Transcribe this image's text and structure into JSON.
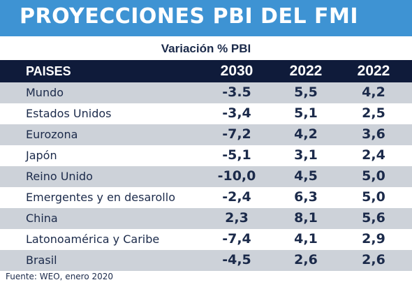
{
  "title": "PROYECCIONES PBI DEL FMI",
  "subtitle": "Variación % PBI",
  "source": "Fuente: WEO, enero 2020",
  "colors": {
    "title_bg": "#3e93d3",
    "header_bg": "#0f1b3a",
    "row_shade": "#cdd2d9",
    "text_dark": "#1b2a4a"
  },
  "chart_data": {
    "type": "table",
    "columns": [
      "PAISES",
      "2030",
      "2022",
      "2022"
    ],
    "rows": [
      {
        "label": "Mundo",
        "values": [
          "-3.5",
          "5,5",
          "4,2"
        ]
      },
      {
        "label": "Estados Unidos",
        "values": [
          "-3,4",
          "5,1",
          "2,5"
        ]
      },
      {
        "label": "Eurozona",
        "values": [
          "-7,2",
          "4,2",
          "3,6"
        ]
      },
      {
        "label": "Japón",
        "values": [
          "-5,1",
          "3,1",
          "2,4"
        ]
      },
      {
        "label": "Reino Unido",
        "values": [
          "-10,0",
          "4,5",
          "5,0"
        ]
      },
      {
        "label": "Emergentes y en desarollo",
        "values": [
          "-2,4",
          "6,3",
          "5,0"
        ]
      },
      {
        "label": "China",
        "values": [
          "2,3",
          "8,1",
          "5,6"
        ]
      },
      {
        "label": "Latonoamérica y Caribe",
        "values": [
          "-7,4",
          "4,1",
          "2,9"
        ]
      },
      {
        "label": "Brasil",
        "values": [
          "-4,5",
          "2,6",
          "2,6"
        ]
      }
    ]
  }
}
